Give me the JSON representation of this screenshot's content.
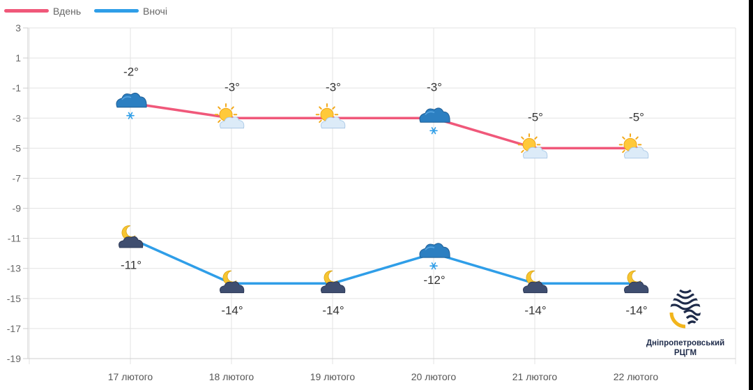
{
  "chart_data": {
    "type": "line",
    "categories": [
      "17 лютого",
      "18 лютого",
      "19 лютого",
      "20 лютого",
      "21 лютого",
      "22 лютого"
    ],
    "series": [
      {
        "name": "Вдень",
        "values": [
          -2,
          -3,
          -3,
          -3,
          -5,
          -5
        ],
        "labels": [
          "-2°",
          "-3°",
          "-3°",
          "-3°",
          "-5°",
          "-5°"
        ],
        "icons": [
          "cloud-snow-icon",
          "sun-cloud-icon",
          "sun-cloud-icon",
          "cloud-snow-icon",
          "sun-cloud-icon",
          "sun-cloud-icon"
        ],
        "color": "#f0587a"
      },
      {
        "name": "Вночі",
        "values": [
          -11,
          -14,
          -14,
          -12,
          -14,
          -14
        ],
        "labels": [
          "-11°",
          "-14°",
          "-14°",
          "-12°",
          "-14°",
          "-14°"
        ],
        "icons": [
          "moon-cloud-icon",
          "moon-cloud-icon",
          "moon-cloud-icon",
          "cloud-snow-icon",
          "moon-cloud-icon",
          "moon-cloud-icon"
        ],
        "color": "#2f9ee8"
      }
    ],
    "ylim": [
      -19,
      3
    ],
    "yticks": [
      3,
      1,
      -1,
      -3,
      -5,
      -7,
      -9,
      -11,
      -13,
      -15,
      -17,
      -19
    ],
    "grid": true,
    "legend": "top-left"
  },
  "logo": {
    "line1": "Дніпропетровський",
    "line2": "РЦГМ"
  }
}
